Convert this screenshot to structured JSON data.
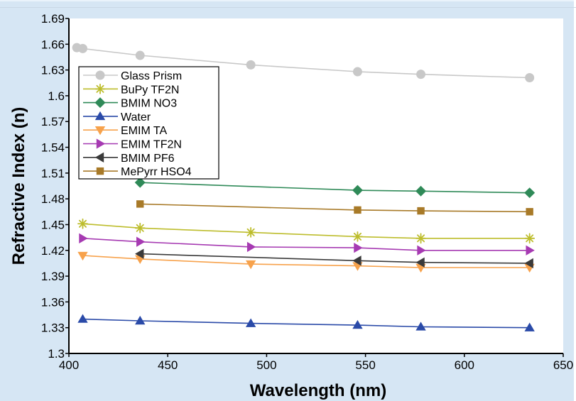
{
  "chart_data": {
    "type": "line",
    "xlabel": "Wavelength (nm)",
    "ylabel": "Refractive Index (n)",
    "xlim": [
      400,
      650
    ],
    "ylim": [
      1.3,
      1.69
    ],
    "x_ticks": [
      "400",
      "450",
      "500",
      "550",
      "600",
      "650"
    ],
    "y_ticks": [
      "1.3",
      "1.33",
      "1.36",
      "1.39",
      "1.42",
      "1.45",
      "1.48",
      "1.51",
      "1.54",
      "1.57",
      "1.6",
      "1.63",
      "1.66",
      "1.69"
    ],
    "grid": false,
    "legend_position": "top-left",
    "series": [
      {
        "name": "Glass Prism",
        "color": "#c8c8c8",
        "marker": "circle",
        "points": [
          [
            404,
            1.656
          ],
          [
            407,
            1.655
          ],
          [
            436,
            1.647
          ],
          [
            492,
            1.636
          ],
          [
            546,
            1.628
          ],
          [
            578,
            1.625
          ],
          [
            633,
            1.621
          ]
        ]
      },
      {
        "name": "BuPy TF2N",
        "color": "#bdbd2c",
        "marker": "star",
        "points": [
          [
            407,
            1.451
          ],
          [
            436,
            1.446
          ],
          [
            492,
            1.441
          ],
          [
            546,
            1.436
          ],
          [
            578,
            1.434
          ],
          [
            633,
            1.434
          ]
        ]
      },
      {
        "name": "BMIM NO3",
        "color": "#2f8a58",
        "marker": "diamond",
        "points": [
          [
            436,
            1.499
          ],
          [
            546,
            1.49
          ],
          [
            578,
            1.489
          ],
          [
            633,
            1.487
          ]
        ]
      },
      {
        "name": "Water",
        "color": "#2a4aa8",
        "marker": "triangle-up",
        "points": [
          [
            407,
            1.34
          ],
          [
            436,
            1.338
          ],
          [
            492,
            1.335
          ],
          [
            546,
            1.333
          ],
          [
            578,
            1.331
          ],
          [
            633,
            1.33
          ]
        ]
      },
      {
        "name": "EMIM TA",
        "color": "#f7a24c",
        "marker": "triangle-down",
        "points": [
          [
            407,
            1.414
          ],
          [
            436,
            1.41
          ],
          [
            492,
            1.404
          ],
          [
            546,
            1.402
          ],
          [
            578,
            1.4
          ],
          [
            633,
            1.4
          ]
        ]
      },
      {
        "name": "EMIM TF2N",
        "color": "#a63ab2",
        "marker": "triangle-right",
        "points": [
          [
            407,
            1.434
          ],
          [
            436,
            1.43
          ],
          [
            492,
            1.424
          ],
          [
            546,
            1.423
          ],
          [
            578,
            1.42
          ],
          [
            633,
            1.42
          ]
        ]
      },
      {
        "name": "BMIM PF6",
        "color": "#3a3a3a",
        "marker": "triangle-left",
        "points": [
          [
            436,
            1.416
          ],
          [
            546,
            1.408
          ],
          [
            578,
            1.406
          ],
          [
            633,
            1.405
          ]
        ]
      },
      {
        "name": "MePyrr HSO4",
        "color": "#a87a28",
        "marker": "square",
        "points": [
          [
            436,
            1.474
          ],
          [
            546,
            1.467
          ],
          [
            578,
            1.466
          ],
          [
            633,
            1.465
          ]
        ]
      }
    ]
  }
}
